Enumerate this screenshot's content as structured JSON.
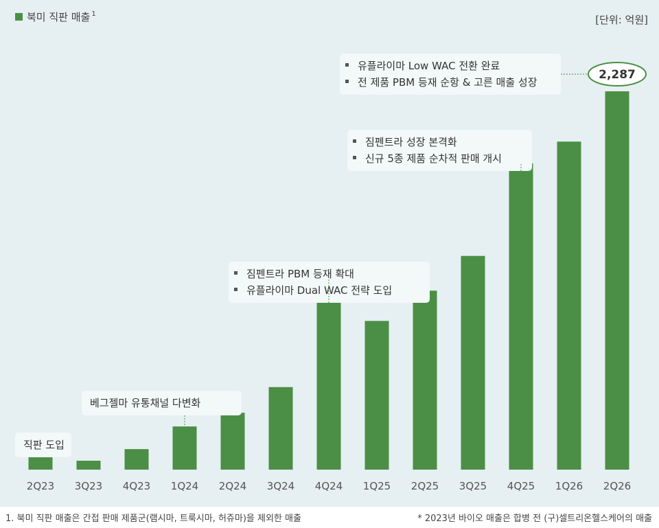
{
  "legend": {
    "label": "북미 직판 매출",
    "sup": "1",
    "color": "#4a8f45"
  },
  "unit": "[단위: 억원]",
  "footnote_left": "1. 북미 직판 매출은 간접 판매 제품군(램시마, 트룩시마, 허쥬마)을 제외한 매출",
  "footnote_right": "* 2023년 바이오 매출은 합병 전 (구)셀트리온헬스케어의 매출",
  "chart_data": {
    "type": "bar",
    "title": "",
    "xlabel": "",
    "ylabel": "",
    "categories": [
      "2Q23",
      "3Q23",
      "4Q23",
      "1Q24",
      "2Q24",
      "3Q24",
      "4Q24",
      "1Q25",
      "2Q25",
      "3Q25",
      "4Q25",
      "1Q26",
      "2Q26"
    ],
    "series": [
      {
        "name": "북미 직판 매출",
        "values": [
          113,
          54,
          124,
          261,
          344,
          499,
          1169,
          899,
          1082,
          1292,
          1851,
          1983,
          2287
        ]
      }
    ],
    "ylim": [
      0,
      2600
    ],
    "grid": false,
    "data_labels": [
      {
        "index": 12,
        "text": "2,287"
      }
    ],
    "annotations": [
      {
        "index": 0,
        "lines": [
          "직판 도입"
        ],
        "bullet": false
      },
      {
        "index": 3,
        "lines": [
          "베그젤마 유통채널 다변화"
        ],
        "bullet": false
      },
      {
        "index": 6,
        "lines": [
          "짐펜트라 PBM 등재 확대",
          "유플라이마 Dual WAC 전략 도입"
        ],
        "bullet": true
      },
      {
        "index": 10,
        "lines": [
          "짐펜트라 성장 본격화",
          "신규 5종 제품 순차적 판매 개시"
        ],
        "bullet": true
      },
      {
        "index": 12,
        "lines": [
          "유플라이마 Low WAC 전환 완료",
          "전 제품 PBM 등재 순항 & 고른 매출 성장"
        ],
        "bullet": true
      }
    ]
  }
}
